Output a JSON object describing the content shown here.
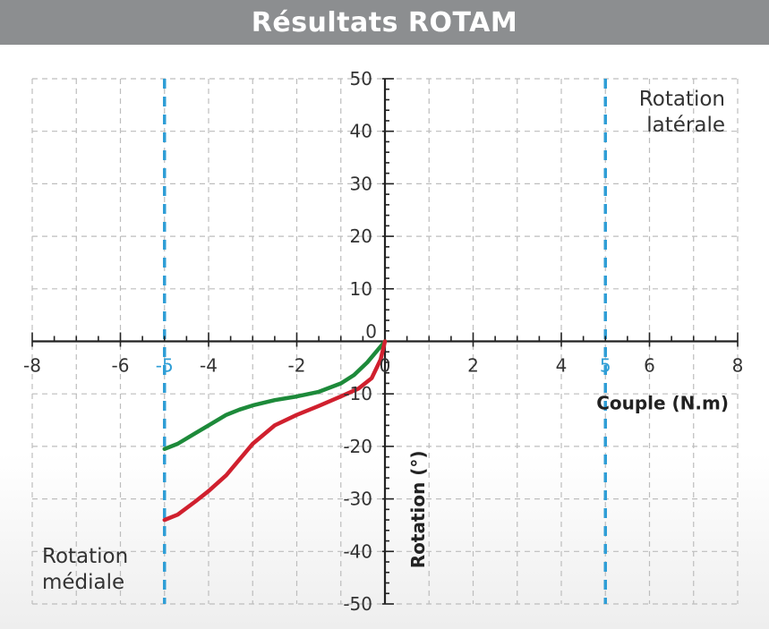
{
  "header": {
    "title": "Résultats ROTAM"
  },
  "colors": {
    "header_bg": "#8c8e90",
    "grid": "#bdbdbd",
    "axis": "#222222",
    "reference": "#2f9ed6",
    "green_series": "#1d8a3a",
    "red_series": "#d0202e"
  },
  "chart_data": {
    "type": "line",
    "title": "Résultats ROTAM",
    "xlabel": "Couple (N.m)",
    "ylabel": "Rotation (°)",
    "xlim": [
      -8,
      8
    ],
    "ylim": [
      -50,
      50
    ],
    "grid": true,
    "x_ticks": [
      "-8",
      "-6",
      "-4",
      "-2",
      "0",
      "2",
      "4",
      "6",
      "8"
    ],
    "x_ticks_highlight": [
      "-5",
      "5"
    ],
    "y_ticks": [
      "50",
      "40",
      "30",
      "20",
      "10",
      "0",
      "-10",
      "-20",
      "-30",
      "-40",
      "-50"
    ],
    "reference_lines_x": [
      -5,
      5
    ],
    "annotations": {
      "lateral": [
        "Rotation",
        "latérale"
      ],
      "medial": [
        "Rotation",
        "médiale"
      ]
    },
    "series": [
      {
        "color": "green",
        "x": [
          -5,
          -4.7,
          -4.3,
          -4,
          -3.6,
          -3.3,
          -3,
          -2.5,
          -2,
          -1.5,
          -1,
          -0.7,
          -0.4,
          -0.15,
          0
        ],
        "y": [
          -20.5,
          -19.5,
          -17.5,
          -16,
          -14,
          -13,
          -12.2,
          -11.2,
          -10.5,
          -9.6,
          -8,
          -6.4,
          -4,
          -1.5,
          0
        ]
      },
      {
        "color": "red",
        "x": [
          -5,
          -4.7,
          -4.3,
          -4,
          -3.6,
          -3.3,
          -3,
          -2.5,
          -2,
          -1.5,
          -1,
          -0.6,
          -0.3,
          -0.1,
          0
        ],
        "y": [
          -34,
          -33,
          -30.5,
          -28.5,
          -25.5,
          -22.5,
          -19.5,
          -16,
          -14,
          -12.3,
          -10.5,
          -9,
          -7,
          -3.5,
          0
        ]
      }
    ]
  }
}
